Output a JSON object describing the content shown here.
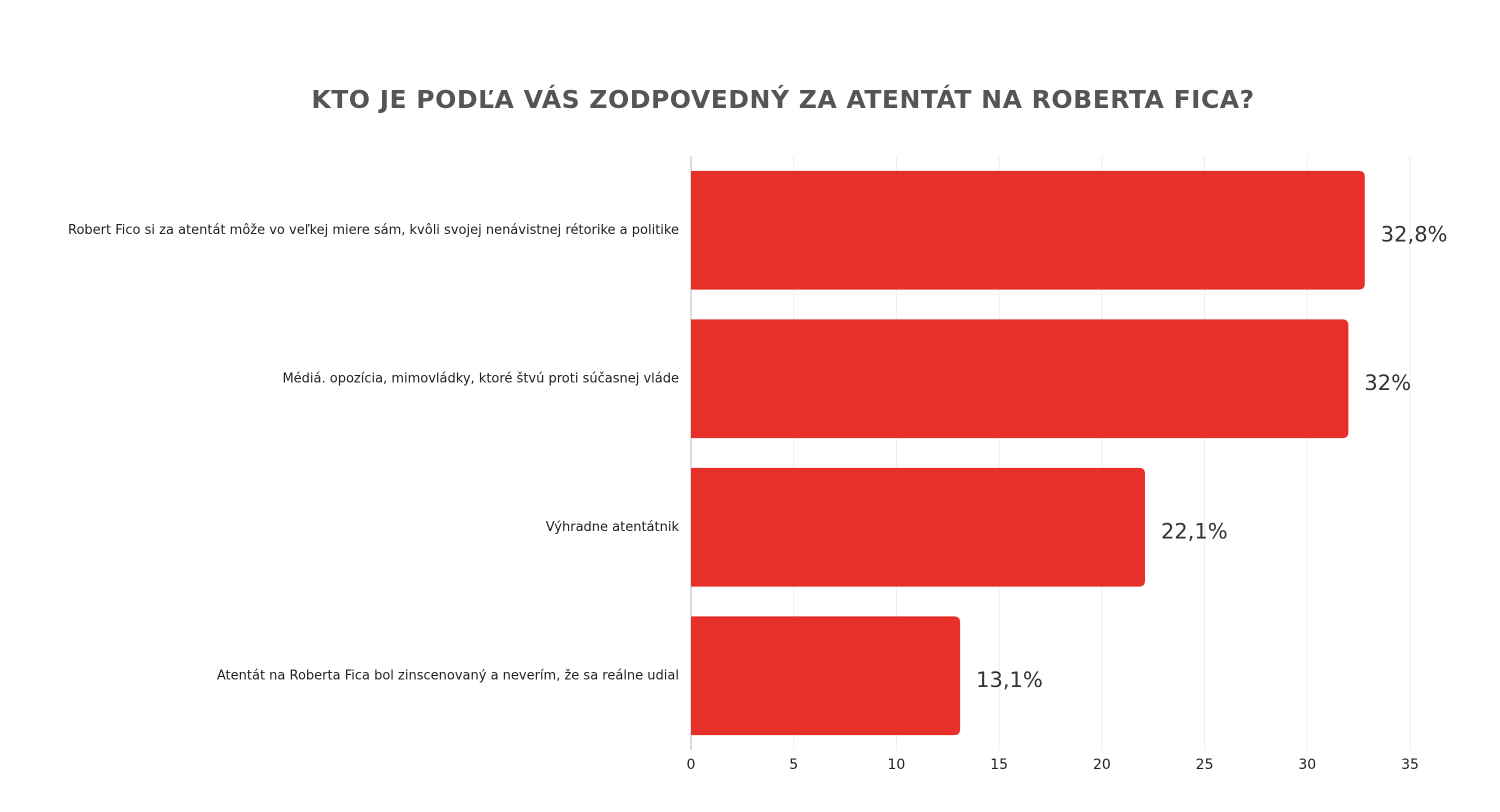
{
  "chart_data": {
    "type": "bar",
    "orientation": "horizontal",
    "title": "KTO JE PODĽA VÁS ZODPOVEDNÝ ZA ATENTÁT NA ROBERTA FICA?",
    "categories": [
      "Robert Fico si za atentát môže vo veľkej miere sám, kvôli svojej nenávistnej rétorike a politike",
      "Médiá. opozícia, mimovládky, ktoré štvú proti súčasnej vláde",
      "Výhradne atentátnik",
      "Atentát na Roberta Fica bol zinscenovaný a neverím, že sa reálne udial"
    ],
    "values": [
      32.8,
      32,
      22.1,
      13.1
    ],
    "value_labels": [
      "32,8%",
      "32%",
      "22,1%",
      "13,1%"
    ],
    "color": "#e8302a",
    "xlim": [
      0,
      35
    ],
    "xticks": [
      0,
      5,
      10,
      15,
      20,
      25,
      30,
      35
    ],
    "grid": true
  }
}
